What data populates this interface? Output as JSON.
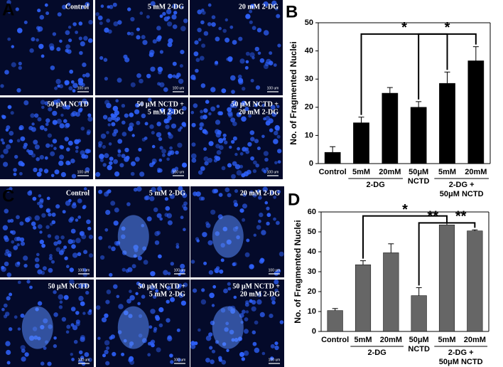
{
  "micrographs": [
    {
      "panel": "A",
      "images": [
        {
          "label": [
            "Control"
          ],
          "scale_label": "100 um"
        },
        {
          "label": [
            "5 mM 2-DG"
          ],
          "scale_label": "100 um"
        },
        {
          "label": [
            "20 mM 2-DG"
          ],
          "scale_label": "100 um"
        },
        {
          "label": [
            "50 μM NCTD"
          ],
          "scale_label": "100 um"
        },
        {
          "label": [
            "50 μM NCTD +",
            "5 mM 2-DG"
          ],
          "scale_label": "100 um"
        },
        {
          "label": [
            "50 μM NCTD +",
            "20 mM 2-DG"
          ],
          "scale_label": "100 um"
        }
      ]
    },
    {
      "panel": "C",
      "images": [
        {
          "label": [
            "Control"
          ],
          "scale_label": "100 um"
        },
        {
          "label": [
            "5 mM 2-DG"
          ],
          "scale_label": "100 um"
        },
        {
          "label": [
            "20 mM 2-DG"
          ],
          "scale_label": "100 um"
        },
        {
          "label": [
            "50 μM NCTD"
          ],
          "scale_label": "100 um"
        },
        {
          "label": [
            "50 μM NCTD +",
            "5 mM 2-DG"
          ],
          "scale_label": "100 um"
        },
        {
          "label": [
            "50 μM NCTD +",
            "20 mM 2-DG"
          ],
          "scale_label": "100 um"
        }
      ]
    }
  ],
  "chart_data": [
    {
      "type": "bar",
      "panel": "B",
      "y_label": "No. of Fragmented Nuclei",
      "categories": [
        "Control",
        "5mM",
        "20mM",
        "50μM NCTD",
        "5mM",
        "20mM"
      ],
      "values": [
        4,
        14.5,
        25,
        20,
        28.5,
        36.5
      ],
      "errors": [
        2,
        2,
        2,
        2,
        4,
        5
      ],
      "group_labels": [
        [
          "2-DG"
        ],
        [
          "2-DG +",
          "50μM NCTD"
        ]
      ],
      "annotations": [
        "*",
        "*"
      ],
      "color": "#000000",
      "ylim": [
        0,
        50
      ],
      "yticks": [
        0,
        10,
        20,
        30,
        40,
        50
      ]
    },
    {
      "type": "bar",
      "panel": "D",
      "y_label": "No. of Fragmented Nuclei",
      "categories": [
        "Control",
        "5mM",
        "20mM",
        "50μM NCTD",
        "5mM",
        "20mM"
      ],
      "values": [
        10.5,
        33.5,
        39.5,
        18,
        53.5,
        50.5
      ],
      "errors": [
        1,
        2,
        4.5,
        4,
        1,
        0.5
      ],
      "group_labels": [
        [
          "2-DG"
        ],
        [
          "2-DG +",
          "50μM NCTD"
        ]
      ],
      "annotations": [
        "*",
        "**",
        "**"
      ],
      "color": "#666666",
      "ylim": [
        0,
        60
      ],
      "yticks": [
        0,
        10,
        20,
        30,
        40,
        50,
        60
      ]
    }
  ]
}
